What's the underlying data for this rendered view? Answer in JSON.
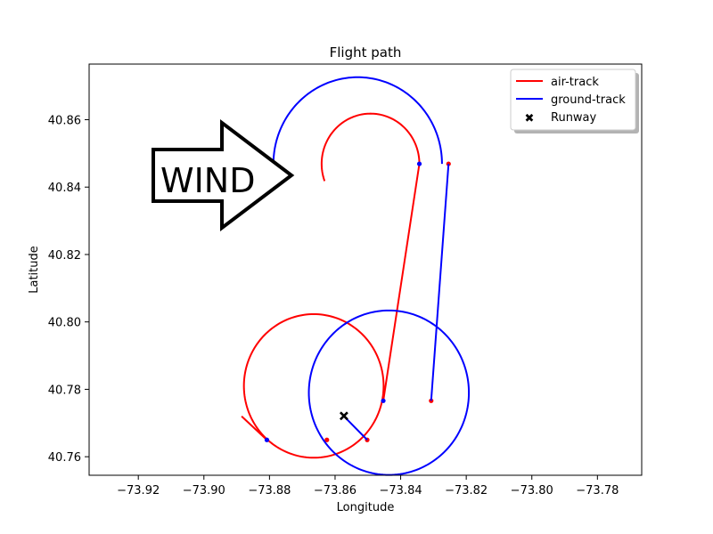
{
  "chart_data": {
    "type": "line",
    "title": "Flight path",
    "xlabel": "Longitude",
    "ylabel": "Latitude",
    "xlim": [
      -73.935,
      -73.7665
    ],
    "ylim": [
      40.7545,
      40.8765
    ],
    "xticks": [
      -73.92,
      -73.9,
      -73.88,
      -73.86,
      -73.84,
      -73.82,
      -73.8,
      -73.78
    ],
    "xtick_labels": [
      "−73.92",
      "−73.90",
      "−73.88",
      "−73.86",
      "−73.84",
      "−73.82",
      "−73.80",
      "−73.78"
    ],
    "yticks": [
      40.76,
      40.78,
      40.8,
      40.82,
      40.84,
      40.86
    ],
    "ytick_labels": [
      "40.76",
      "40.78",
      "40.80",
      "40.82",
      "40.84",
      "40.86"
    ],
    "grid": false,
    "legend_position": "top-right",
    "annotation": {
      "text": "WIND",
      "shape": "right-arrow"
    },
    "series": [
      {
        "name": "air-track",
        "color": "#ff0000",
        "circle": {
          "center": [
            -73.8665,
            40.781
          ],
          "radius": 0.0213
        },
        "approach_line": [
          [
            -73.8885,
            40.772
          ],
          [
            -73.8808,
            40.765
          ]
        ],
        "straight_leg": [
          [
            -73.8453,
            40.7766
          ],
          [
            -73.8343,
            40.8469
          ]
        ],
        "top_arc": {
          "center": [
            -73.8492,
            40.8469
          ],
          "radius": 0.0149,
          "from_deg": 0,
          "to_deg": 200
        },
        "markers": [
          [
            -73.8625,
            40.765
          ],
          [
            -73.8502,
            40.765
          ],
          [
            -73.8307,
            40.7766
          ],
          [
            -73.8254,
            40.8469
          ]
        ]
      },
      {
        "name": "ground-track",
        "color": "#0000ff",
        "circle": {
          "center": [
            -73.8436,
            40.779
          ],
          "radius": 0.0244
        },
        "approach_line": [
          [
            -73.8573,
            40.772
          ],
          [
            -73.8502,
            40.765
          ]
        ],
        "straight_leg": [
          [
            -73.8307,
            40.7766
          ],
          [
            -73.8254,
            40.8469
          ]
        ],
        "top_arc": {
          "center": [
            -73.8531,
            40.8469
          ],
          "radius": 0.0257,
          "from_deg": 0,
          "to_deg": 180
        },
        "markers": [
          [
            -73.8808,
            40.765
          ],
          [
            -73.8453,
            40.7766
          ],
          [
            -73.8343,
            40.8469
          ]
        ]
      },
      {
        "name": "Runway",
        "color": "#000000",
        "marker": "x",
        "points": [
          [
            -73.8573,
            40.7721
          ]
        ]
      }
    ]
  }
}
